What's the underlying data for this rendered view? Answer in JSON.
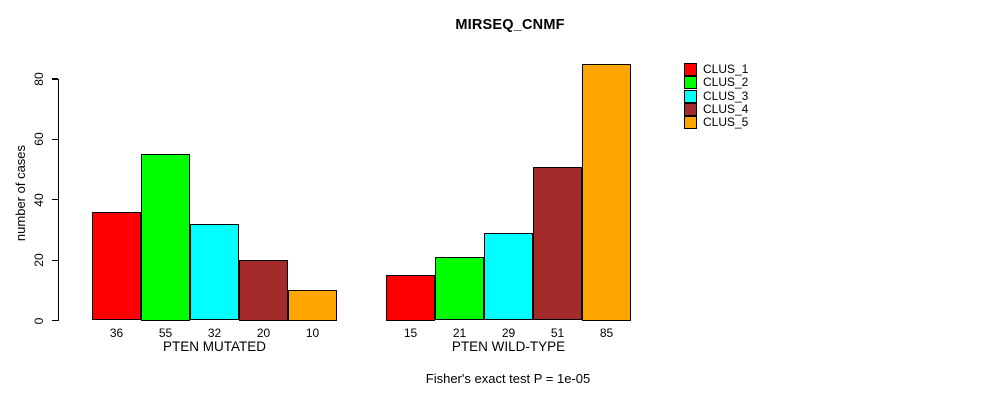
{
  "chart_data": {
    "type": "bar",
    "title": "MIRSEQ_CNMF",
    "ylabel": "number of cases",
    "xlabel": "",
    "categories": [
      "PTEN MUTATED",
      "PTEN WILD-TYPE"
    ],
    "series": [
      {
        "name": "CLUS_1",
        "color": "#FF0000",
        "values": [
          36,
          15
        ]
      },
      {
        "name": "CLUS_2",
        "color": "#00FF00",
        "values": [
          55,
          21
        ]
      },
      {
        "name": "CLUS_3",
        "color": "#00FFFF",
        "values": [
          32,
          29
        ]
      },
      {
        "name": "CLUS_4",
        "color": "#A52A2A",
        "values": [
          20,
          51
        ]
      },
      {
        "name": "CLUS_5",
        "color": "#FFA500",
        "values": [
          10,
          85
        ]
      }
    ],
    "yticks": [
      0,
      20,
      40,
      60,
      80
    ],
    "ylim": [
      0,
      88
    ],
    "grid": false,
    "legend_position": "right",
    "bar_value_labels": true,
    "annotation": "Fisher's exact test P = 1e-05"
  }
}
